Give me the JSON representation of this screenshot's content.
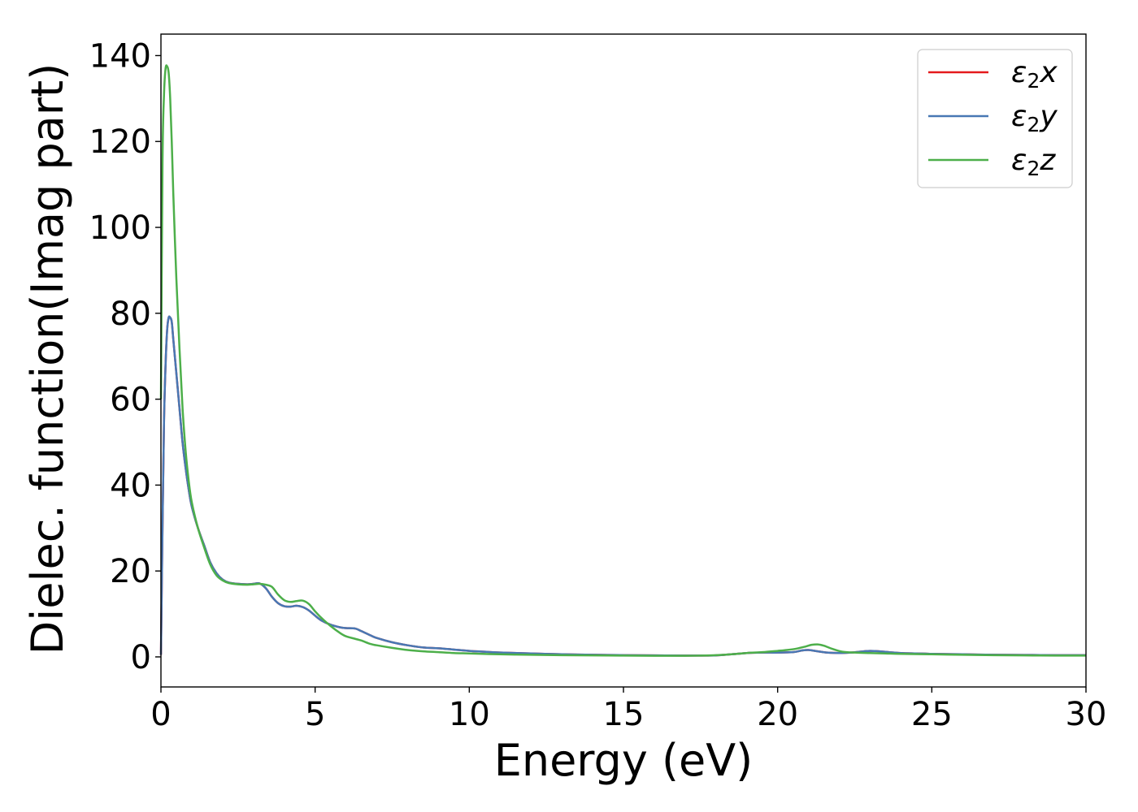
{
  "chart_data": {
    "type": "line",
    "xlabel": "Energy (eV)",
    "ylabel": "Dielec. function(Imag part)",
    "xlim": [
      0,
      30
    ],
    "ylim": [
      -7,
      145
    ],
    "xticks": [
      0,
      5,
      10,
      15,
      20,
      25,
      30
    ],
    "yticks": [
      0,
      20,
      40,
      60,
      80,
      100,
      120,
      140
    ],
    "grid": false,
    "legend_position": "top-right",
    "series": [
      {
        "name": "ε₂x",
        "legend": {
          "base": "ε",
          "sub": "2",
          "suffix": "x"
        },
        "color": "#e41a1c",
        "x": [
          0.0,
          0.05,
          0.1,
          0.15,
          0.2,
          0.25,
          0.3,
          0.35,
          0.4,
          0.5,
          0.6,
          0.7,
          0.8,
          0.9,
          1.0,
          1.2,
          1.4,
          1.6,
          1.8,
          2.0,
          2.2,
          2.5,
          2.8,
          3.0,
          3.2,
          3.4,
          3.6,
          3.8,
          4.0,
          4.2,
          4.4,
          4.6,
          4.8,
          5.0,
          5.2,
          5.5,
          5.8,
          6.0,
          6.3,
          6.5,
          6.8,
          7.0,
          7.5,
          8.0,
          8.5,
          9.0,
          9.5,
          10.0,
          10.5,
          11.0,
          12.0,
          13.0,
          14.0,
          15.0,
          16.0,
          17.0,
          17.5,
          18.0,
          18.5,
          19.0,
          19.5,
          20.0,
          20.5,
          20.8,
          21.0,
          21.3,
          21.6,
          22.0,
          22.4,
          22.8,
          23.0,
          23.3,
          23.6,
          24.0,
          24.5,
          25.0,
          26.0,
          27.0,
          28.0,
          29.0,
          30.0
        ],
        "values": [
          0.5,
          30,
          55,
          68,
          76,
          79,
          79,
          78,
          74,
          66,
          58,
          50,
          44,
          39,
          35,
          30,
          26,
          22,
          19.5,
          18,
          17.3,
          17,
          16.9,
          17,
          17.1,
          16,
          14,
          12.5,
          11.8,
          11.7,
          11.9,
          11.6,
          10.8,
          9.6,
          8.5,
          7.5,
          6.9,
          6.7,
          6.6,
          6.0,
          5.0,
          4.4,
          3.4,
          2.7,
          2.2,
          2.0,
          1.7,
          1.4,
          1.2,
          1.0,
          0.8,
          0.6,
          0.5,
          0.4,
          0.35,
          0.3,
          0.3,
          0.35,
          0.6,
          0.9,
          1.0,
          1.0,
          1.1,
          1.5,
          1.6,
          1.3,
          1.0,
          0.9,
          1.0,
          1.3,
          1.4,
          1.3,
          1.1,
          0.9,
          0.8,
          0.7,
          0.6,
          0.5,
          0.45,
          0.4,
          0.4
        ]
      },
      {
        "name": "ε₂y",
        "legend": {
          "base": "ε",
          "sub": "2",
          "suffix": "y"
        },
        "color": "#4878b4",
        "x": [
          0.0,
          0.05,
          0.1,
          0.15,
          0.2,
          0.25,
          0.3,
          0.35,
          0.4,
          0.5,
          0.6,
          0.7,
          0.8,
          0.9,
          1.0,
          1.2,
          1.4,
          1.6,
          1.8,
          2.0,
          2.2,
          2.5,
          2.8,
          3.0,
          3.2,
          3.4,
          3.6,
          3.8,
          4.0,
          4.2,
          4.4,
          4.6,
          4.8,
          5.0,
          5.2,
          5.5,
          5.8,
          6.0,
          6.3,
          6.5,
          6.8,
          7.0,
          7.5,
          8.0,
          8.5,
          9.0,
          9.5,
          10.0,
          10.5,
          11.0,
          12.0,
          13.0,
          14.0,
          15.0,
          16.0,
          17.0,
          17.5,
          18.0,
          18.5,
          19.0,
          19.5,
          20.0,
          20.5,
          20.8,
          21.0,
          21.3,
          21.6,
          22.0,
          22.4,
          22.8,
          23.0,
          23.3,
          23.6,
          24.0,
          24.5,
          25.0,
          26.0,
          27.0,
          28.0,
          29.0,
          30.0
        ],
        "values": [
          0.5,
          30,
          55,
          68,
          76,
          79,
          79,
          78,
          74,
          66,
          58,
          50,
          44,
          39,
          35,
          30,
          26,
          22,
          19.5,
          18,
          17.3,
          17,
          16.9,
          17,
          17.1,
          16,
          14,
          12.5,
          11.8,
          11.7,
          11.9,
          11.6,
          10.8,
          9.6,
          8.5,
          7.5,
          6.9,
          6.7,
          6.6,
          6.0,
          5.0,
          4.4,
          3.4,
          2.7,
          2.2,
          2.0,
          1.7,
          1.4,
          1.2,
          1.0,
          0.8,
          0.6,
          0.5,
          0.4,
          0.35,
          0.3,
          0.3,
          0.35,
          0.6,
          0.9,
          1.0,
          1.0,
          1.1,
          1.5,
          1.6,
          1.3,
          1.0,
          0.9,
          1.0,
          1.3,
          1.4,
          1.3,
          1.1,
          0.9,
          0.8,
          0.7,
          0.6,
          0.5,
          0.45,
          0.4,
          0.4
        ]
      },
      {
        "name": "ε₂z",
        "legend": {
          "base": "ε",
          "sub": "2",
          "suffix": "z"
        },
        "color": "#4daf4a",
        "x": [
          0.0,
          0.05,
          0.1,
          0.15,
          0.2,
          0.25,
          0.3,
          0.35,
          0.4,
          0.5,
          0.6,
          0.7,
          0.8,
          0.9,
          1.0,
          1.2,
          1.4,
          1.6,
          1.8,
          2.0,
          2.2,
          2.5,
          2.8,
          3.0,
          3.2,
          3.4,
          3.6,
          3.8,
          4.0,
          4.2,
          4.4,
          4.6,
          4.8,
          5.0,
          5.2,
          5.5,
          5.8,
          6.0,
          6.3,
          6.5,
          6.8,
          7.0,
          7.5,
          8.0,
          8.5,
          9.0,
          9.5,
          10.0,
          11.0,
          12.0,
          13.0,
          14.0,
          15.0,
          16.0,
          17.0,
          17.5,
          18.0,
          18.5,
          19.0,
          19.5,
          20.0,
          20.3,
          20.6,
          20.9,
          21.1,
          21.3,
          21.5,
          21.8,
          22.1,
          22.5,
          23.0,
          23.5,
          24.0,
          25.0,
          26.0,
          27.0,
          28.0,
          29.0,
          30.0
        ],
        "values": [
          60,
          115,
          131,
          137,
          137.5,
          136,
          130,
          120,
          108,
          88,
          72,
          58,
          48,
          41,
          36,
          30,
          25.5,
          21.5,
          19,
          17.8,
          17.2,
          16.9,
          16.8,
          16.9,
          17,
          16.8,
          16.3,
          14.5,
          13.2,
          12.8,
          13,
          13.1,
          12.3,
          10.6,
          9.1,
          7.2,
          5.6,
          4.8,
          4.2,
          3.8,
          3.0,
          2.7,
          2.1,
          1.6,
          1.3,
          1.1,
          0.9,
          0.8,
          0.6,
          0.5,
          0.4,
          0.35,
          0.3,
          0.25,
          0.25,
          0.3,
          0.4,
          0.6,
          0.9,
          1.1,
          1.4,
          1.6,
          1.9,
          2.4,
          2.8,
          2.9,
          2.6,
          1.8,
          1.2,
          1.0,
          0.9,
          0.8,
          0.7,
          0.6,
          0.5,
          0.4,
          0.35,
          0.3,
          0.3
        ]
      }
    ]
  }
}
